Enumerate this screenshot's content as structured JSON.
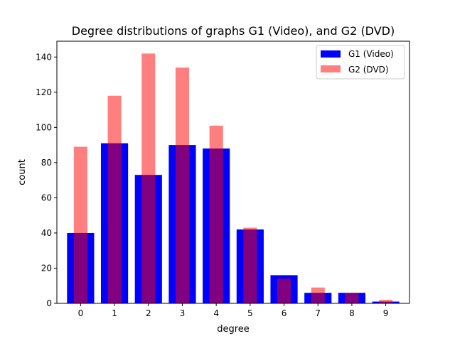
{
  "chart_data": {
    "type": "bar",
    "title": "Degree distributions of graphs G1 (Video), and G2 (DVD)",
    "xlabel": "degree",
    "ylabel": "count",
    "categories": [
      "0",
      "1",
      "2",
      "3",
      "4",
      "5",
      "6",
      "7",
      "8",
      "9"
    ],
    "x": [
      0,
      1,
      2,
      3,
      4,
      5,
      6,
      7,
      8,
      9
    ],
    "xlim": [
      -0.7,
      9.7
    ],
    "ylim": [
      0,
      149
    ],
    "yticks": [
      0,
      20,
      40,
      60,
      80,
      100,
      120,
      140
    ],
    "series": [
      {
        "name": "G1 (Video)",
        "color": "#0000ff",
        "opacity": 1.0,
        "bar_width": 0.8,
        "values": [
          40,
          91,
          73,
          90,
          88,
          42,
          16,
          6,
          6,
          1
        ]
      },
      {
        "name": "G2 (DVD)",
        "color": "#ff0000",
        "opacity": 0.5,
        "bar_width": 0.4,
        "values": [
          89,
          118,
          142,
          134,
          101,
          43,
          14,
          9,
          6,
          2
        ]
      }
    ],
    "grid": false,
    "legend_position": "top-right"
  }
}
